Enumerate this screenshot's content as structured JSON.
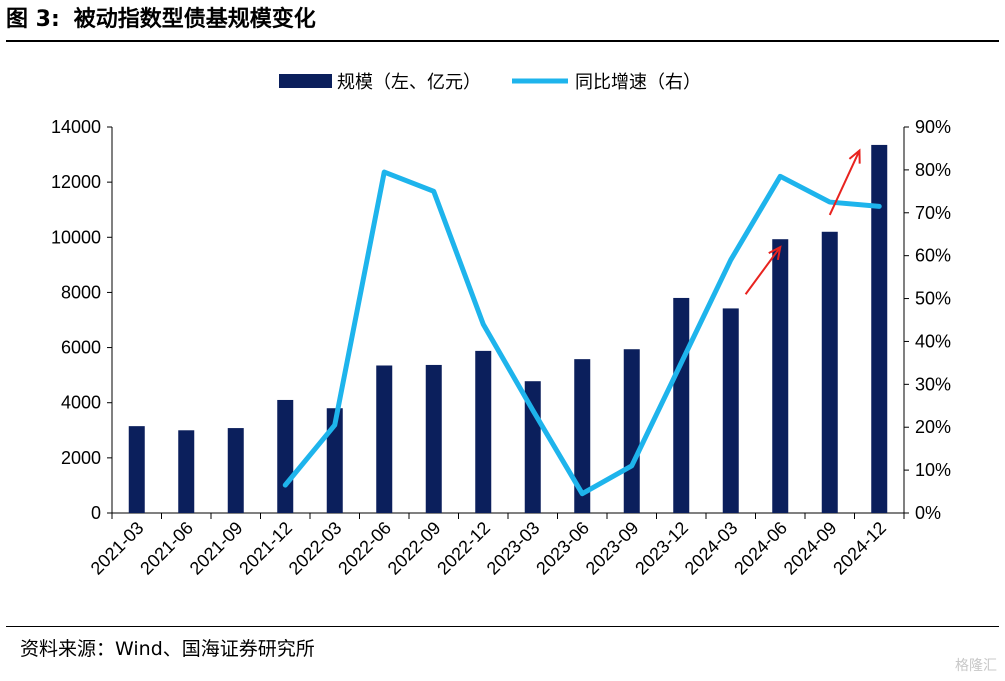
{
  "figure": {
    "label": "图 3:",
    "title": "被动指数型债基规模变化",
    "source": "资料来源：Wind、国海证券研究所",
    "watermark": "格隆汇"
  },
  "chart_data": {
    "type": "bar",
    "categories": [
      "2021-03",
      "2021-06",
      "2021-09",
      "2021-12",
      "2022-03",
      "2022-06",
      "2022-09",
      "2022-12",
      "2023-03",
      "2023-06",
      "2023-09",
      "2023-12",
      "2024-03",
      "2024-06",
      "2024-09",
      "2024-12"
    ],
    "series": [
      {
        "name": "规模（左、亿元）",
        "type": "bar",
        "axis": "left",
        "color": "#0b1f5c",
        "values": [
          3150,
          3000,
          3080,
          4100,
          3800,
          5350,
          5370,
          5880,
          4780,
          5580,
          5940,
          7800,
          7420,
          9930,
          10200,
          13350
        ]
      },
      {
        "name": "同比增速（右）",
        "type": "line",
        "axis": "right",
        "color": "#1eb4ec",
        "values": [
          null,
          null,
          null,
          6.5,
          20.5,
          79.5,
          75,
          44,
          24,
          4.5,
          11,
          35,
          59,
          78.5,
          72.5,
          71.5
        ]
      }
    ],
    "left_axis": {
      "min": 0,
      "max": 14000,
      "ticks": [
        0,
        2000,
        4000,
        6000,
        8000,
        10000,
        12000,
        14000
      ]
    },
    "right_axis": {
      "min": 0,
      "max": 90,
      "ticks": [
        "0%",
        "10%",
        "20%",
        "30%",
        "40%",
        "50%",
        "60%",
        "70%",
        "80%",
        "90%"
      ]
    },
    "legend_position": "top-center",
    "grid": false,
    "annotations": [
      {
        "type": "arrow",
        "color": "#e8231f",
        "from": {
          "x": 12.3,
          "y": 51
        },
        "to": {
          "x": 13.0,
          "y": 62
        }
      },
      {
        "type": "arrow",
        "color": "#e8231f",
        "from": {
          "x": 14.0,
          "y": 69.5
        },
        "to": {
          "x": 14.6,
          "y": 84.5
        }
      }
    ]
  }
}
